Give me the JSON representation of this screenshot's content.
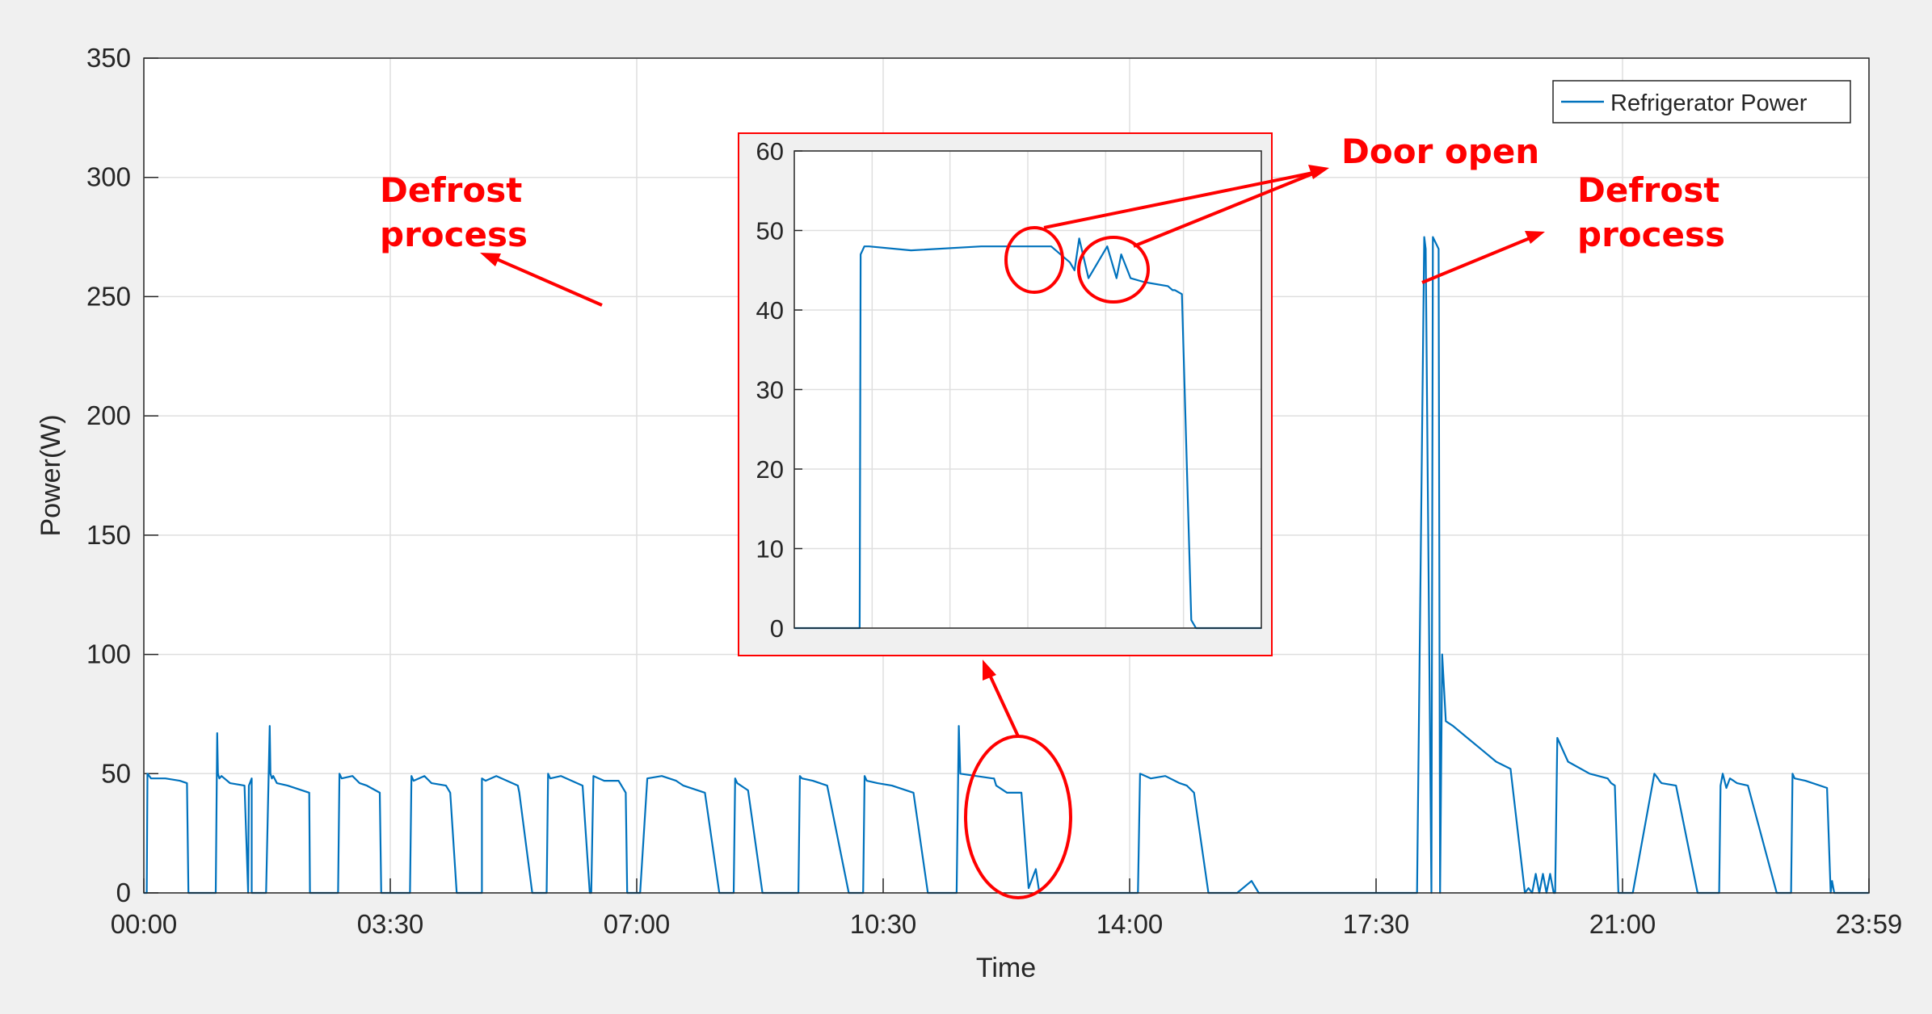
{
  "chart_data": {
    "type": "line",
    "xlabel": "Time",
    "ylabel": "Power(W)",
    "xticks": [
      "00:00",
      "03:30",
      "07:00",
      "10:30",
      "14:00",
      "17:30",
      "21:00",
      "23:59"
    ],
    "yticks": [
      "0",
      "50",
      "100",
      "150",
      "200",
      "250",
      "300",
      "350"
    ],
    "xlim_hours": [
      0,
      23.983
    ],
    "ylim": [
      0,
      350
    ],
    "grid": true,
    "legend_position": "top-right",
    "series": [
      {
        "name": "Refrigerator Power",
        "color": "#0072BD",
        "x_hours": [
          0.0,
          0.04,
          0.05,
          0.1,
          0.3,
          0.5,
          0.6,
          0.62,
          1.0,
          1.02,
          1.03,
          1.05,
          1.08,
          1.2,
          1.4,
          1.45,
          1.46,
          1.5,
          1.5,
          1.7,
          1.75,
          1.76,
          1.78,
          1.8,
          1.85,
          2.0,
          2.3,
          2.31,
          2.7,
          2.72,
          2.75,
          2.9,
          3.0,
          3.1,
          3.28,
          3.3,
          3.3,
          3.7,
          3.72,
          3.75,
          3.9,
          4.0,
          4.2,
          4.26,
          4.35,
          4.4,
          4.6,
          4.7,
          4.7,
          4.75,
          4.9,
          5.2,
          5.22,
          5.4,
          5.6,
          5.62,
          5.65,
          5.8,
          6.1,
          6.2,
          6.22,
          6.25,
          6.4,
          6.6,
          6.62,
          6.7,
          6.72,
          6.8,
          6.82,
          6.9,
          7.0,
          7.2,
          7.4,
          7.5,
          7.8,
          8.0,
          8.02,
          8.15,
          8.2,
          8.22,
          8.25,
          8.4,
          8.6,
          8.9,
          9.1,
          9.12,
          9.15,
          9.3,
          9.5,
          9.8,
          10.0,
          10.02,
          10.05,
          10.2,
          10.4,
          10.7,
          10.9,
          10.92,
          10.95,
          11.1,
          11.3,
          11.33,
          11.35,
          11.8,
          11.82,
          11.85,
          12.0,
          12.2,
          12.3,
          12.4,
          12.45,
          12.5,
          12.55,
          12.7,
          12.75,
          12.78,
          12.8,
          12.9,
          13.0,
          13.1,
          13.2,
          13.4,
          13.8,
          13.82,
          13.85,
          14.0,
          14.2,
          14.4,
          14.5,
          14.6,
          14.8,
          14.82,
          14.85,
          15.0,
          15.2,
          15.4,
          15.5,
          15.7,
          15.85,
          15.87,
          15.9,
          16.0,
          16.3,
          16.6,
          16.8,
          16.82,
          16.85,
          17.0,
          17.3,
          17.5,
          17.52,
          17.55,
          17.7,
          17.8,
          17.82,
          17.9,
          17.92,
          18.0,
          18.02,
          18.05,
          18.1,
          18.2,
          18.4,
          18.6,
          18.8,
          19.0,
          19.2,
          19.25,
          19.3,
          19.35,
          19.4,
          19.45,
          19.5,
          19.55,
          19.6,
          19.62,
          19.65,
          19.8,
          20.1,
          20.35,
          20.4,
          20.45,
          20.5,
          20.7,
          21.0,
          21.05,
          21.07,
          21.1,
          21.3,
          21.6,
          21.9,
          21.92,
          21.95,
          22.0,
          22.05,
          22.1,
          22.15,
          22.3,
          22.7,
          22.9,
          22.92,
          22.95,
          23.1,
          23.4,
          23.45,
          23.47,
          23.5,
          23.7,
          23.98
        ],
        "y_watts": [
          0,
          0,
          50,
          48,
          48,
          47,
          46,
          0,
          0,
          67,
          50,
          48,
          49,
          46,
          45,
          0,
          45,
          48,
          0,
          0,
          70,
          50,
          48,
          49,
          46,
          45,
          42,
          0,
          0,
          50,
          48,
          49,
          46,
          45,
          42,
          0,
          0,
          0,
          49,
          47,
          49,
          46,
          45,
          42,
          0,
          0,
          0,
          0,
          48,
          47,
          49,
          45,
          42,
          0,
          0,
          50,
          48,
          49,
          45,
          0,
          0,
          49,
          47,
          47,
          46,
          42,
          0,
          0,
          0,
          0,
          48,
          49,
          47,
          45,
          42,
          0,
          0,
          0,
          0,
          48,
          46,
          43,
          0,
          0,
          0,
          49,
          48,
          47,
          45,
          0,
          0,
          49,
          47,
          46,
          45,
          42,
          0,
          0,
          0,
          0,
          0,
          70,
          50,
          48,
          48,
          45,
          42,
          42,
          2,
          10,
          0,
          0,
          0,
          0,
          0,
          0,
          0,
          0,
          0,
          0,
          0,
          0,
          0,
          0,
          50,
          48,
          49,
          46,
          45,
          42,
          0,
          0,
          0,
          0,
          0,
          5,
          0,
          0,
          0,
          0,
          0,
          0,
          0,
          0,
          0,
          0,
          0,
          0,
          0,
          0,
          0,
          0,
          0,
          275,
          270,
          0,
          275,
          270,
          0,
          100,
          72,
          70,
          65,
          60,
          55,
          52,
          0,
          2,
          0,
          8,
          0,
          8,
          0,
          8,
          0,
          0,
          65,
          55,
          50,
          48,
          46,
          45,
          0,
          0,
          50,
          48,
          47,
          46,
          45,
          0,
          0,
          45,
          50,
          44,
          48,
          47,
          46,
          45,
          0,
          0,
          50,
          48,
          47,
          44,
          0,
          5,
          0,
          0,
          0
        ]
      }
    ],
    "inset": {
      "xlim_hours": [
        0,
        1
      ],
      "ylim": [
        0,
        60
      ],
      "yticks": [
        "0",
        "10",
        "20",
        "30",
        "40",
        "50",
        "60"
      ],
      "grid": true,
      "x_frac": [
        0,
        0.14,
        0.142,
        0.15,
        0.16,
        0.25,
        0.4,
        0.5,
        0.55,
        0.59,
        0.6,
        0.61,
        0.63,
        0.67,
        0.69,
        0.7,
        0.72,
        0.75,
        0.8,
        0.81,
        0.815,
        0.83,
        0.85,
        0.86,
        0.87,
        0.88,
        1.0
      ],
      "y_watts": [
        0,
        0,
        47,
        48,
        48,
        47.5,
        48,
        48,
        48,
        46,
        45,
        49,
        44,
        48,
        44,
        47,
        44,
        43.5,
        43,
        42.5,
        42.5,
        42,
        1,
        0,
        0,
        0,
        0
      ]
    },
    "annotations": [
      {
        "text_lines": [
          "Defrost",
          "process"
        ],
        "color": "#FF0000"
      },
      {
        "text_lines": [
          "Door open"
        ],
        "color": "#FF0000"
      },
      {
        "text_lines": [
          "Defrost",
          "process"
        ],
        "color": "#FF0000"
      }
    ]
  }
}
